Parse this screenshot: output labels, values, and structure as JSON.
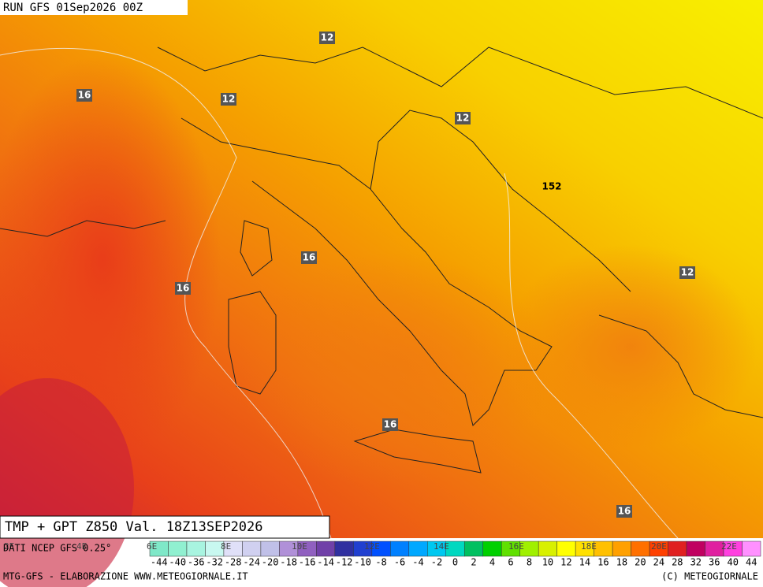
{
  "header": {
    "run": "RUN GFS 01Sep2026 00Z"
  },
  "map": {
    "contour_labels": [
      "12",
      "16",
      "12",
      "12",
      "152",
      "16",
      "16",
      "12",
      "16",
      "16"
    ]
  },
  "footer": {
    "title": "TMP + GPT Z850 Val. 18Z13SEP2026",
    "source": "DATI NCEP GFS 0.25°",
    "longitudes": [
      "2E",
      "4E",
      "6E",
      "8E",
      "10E",
      "12E",
      "14E",
      "16E",
      "18E",
      "20E",
      "22E"
    ],
    "credit_left": "MTG-GFS - ELABORAZIONE WWW.METEOGIORNALE.IT",
    "credit_right": "(C) METEOGIORNALE"
  },
  "scale": {
    "ticks": [
      -44,
      -40,
      -36,
      -32,
      -28,
      -24,
      -20,
      -18,
      -16,
      -14,
      -12,
      -10,
      -8,
      -6,
      -4,
      -2,
      0,
      2,
      4,
      6,
      8,
      10,
      12,
      14,
      16,
      18,
      20,
      24,
      28,
      32,
      36,
      40,
      44
    ],
    "colors": [
      "#7fe8c8",
      "#90f0d0",
      "#a8f4e0",
      "#c8f8f0",
      "#e0e0f8",
      "#d0d0f0",
      "#c0c0e8",
      "#b090d8",
      "#9060c0",
      "#7040a8",
      "#3030a0",
      "#2040d0",
      "#0050ff",
      "#0080ff",
      "#00a8ff",
      "#00c8f0",
      "#00d8c0",
      "#00c060",
      "#00d000",
      "#60e000",
      "#a0f000",
      "#d8f000",
      "#ffff00",
      "#ffe000",
      "#ffc000",
      "#ffa000",
      "#ff7000",
      "#ff4000",
      "#e02020",
      "#c00060",
      "#e020a0",
      "#ff40e0",
      "#ff90ff"
    ]
  }
}
